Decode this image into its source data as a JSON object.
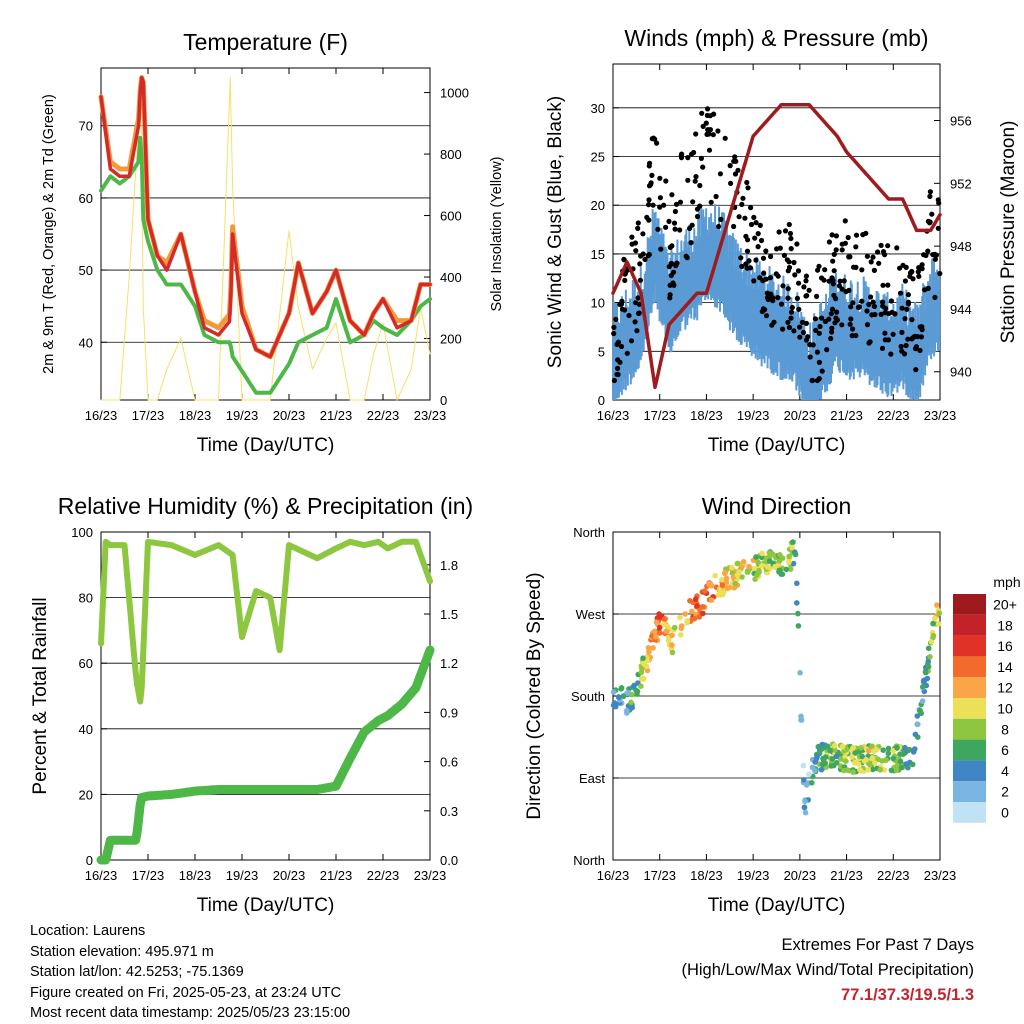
{
  "x_ticks": [
    "16/23",
    "17/23",
    "18/23",
    "19/23",
    "20/23",
    "21/23",
    "22/23",
    "23/23"
  ],
  "time_label": "Time (Day/UTC)",
  "panels": {
    "temperature": {
      "title": "Temperature (F)",
      "ylabel_left": "2m & 9m T (Red, Orange) & 2m Td (Green)",
      "ylabel_right": "Solar Insolation (Yellow)",
      "left_ticks": [
        "40",
        "50",
        "60",
        "70"
      ],
      "right_ticks": [
        "0",
        "200",
        "400",
        "600",
        "800",
        "1000"
      ]
    },
    "winds": {
      "title": "Winds (mph) & Pressure (mb)",
      "ylabel_left": "Sonic Wind & Gust (Blue, Black)",
      "ylabel_right": "Station Pressure (Maroon)",
      "left_ticks": [
        "0",
        "5",
        "10",
        "15",
        "20",
        "25",
        "30"
      ],
      "right_ticks": [
        "940",
        "944",
        "948",
        "952",
        "956"
      ]
    },
    "humidity": {
      "title": "Relative Humidity (%) & Precipitation (in)",
      "ylabel_left": "Percent & Total Rainfall",
      "left_ticks": [
        "0",
        "20",
        "40",
        "60",
        "80",
        "100"
      ],
      "right_ticks": [
        "0.0",
        "0.3",
        "0.6",
        "0.9",
        "1.2",
        "1.5",
        "1.8"
      ]
    },
    "direction": {
      "title": "Wind Direction",
      "ylabel_left": "Direction (Colored By Speed)",
      "left_ticks": [
        "North",
        "East",
        "South",
        "West",
        "North"
      ],
      "colorbar_title": "mph",
      "colorbar_labels": [
        "20+",
        "18",
        "16",
        "14",
        "12",
        "10",
        "8",
        "6",
        "4",
        "2",
        "0"
      ],
      "colorbar_colors": [
        "#9e1a1d",
        "#c42229",
        "#e03226",
        "#f26b2b",
        "#f9a548",
        "#ebe057",
        "#8fc63f",
        "#3fa660",
        "#4186c4",
        "#7ab4e2",
        "#bfe3f5"
      ]
    }
  },
  "info": {
    "location": "Location: Laurens",
    "elevation": "Station elevation: 495.971 m",
    "latlon": "Station lat/lon: 42.5253; -75.1369",
    "created": "Figure created on Fri, 2025-05-23, at 23:24 UTC",
    "timestamp": "Most recent data timestamp: 2025/05/23 23:15:00"
  },
  "extremes": {
    "title": "Extremes For Past 7 Days",
    "subtitle": "(High/Low/Max Wind/Total Precipitation)",
    "values": "77.1/37.3/19.5/1.3"
  },
  "colors": {
    "temp_2m": "#d42a2a",
    "temp_9m": "#f29a3a",
    "dewpoint": "#4db848",
    "insolation": "#f7df6a",
    "wind": "#5b9bd5",
    "gust": "#000000",
    "pressure": "#9e1b1f",
    "rh": "#8dc63f",
    "precip": "#4db848"
  },
  "chart_data": [
    {
      "type": "line",
      "title": "Temperature (F)",
      "xlabel": "Time (Day/UTC)",
      "ylabel": "2m & 9m T (Red, Orange) & 2m Td (Green)",
      "ylabel_right": "Solar Insolation (Yellow)",
      "x": [
        16,
        16.2,
        16.4,
        16.6,
        16.8,
        16.85,
        16.9,
        17.0,
        17.2,
        17.4,
        17.7,
        18.0,
        18.2,
        18.5,
        18.75,
        18.8,
        19.0,
        19.3,
        19.6,
        20.0,
        20.2,
        20.5,
        20.8,
        21.0,
        21.3,
        21.6,
        21.8,
        22.0,
        22.3,
        22.6,
        22.8,
        23.0
      ],
      "xlim": [
        16,
        23
      ],
      "ylim": [
        32,
        78
      ],
      "ylim_right": [
        0,
        1000
      ],
      "series": [
        {
          "name": "2m T",
          "axis": "left",
          "values": [
            74,
            64,
            63,
            63,
            70,
            77,
            76,
            57,
            52,
            50,
            55,
            47,
            42,
            41,
            43,
            55,
            44,
            39,
            38,
            44,
            51,
            44,
            47,
            50,
            43,
            41,
            44,
            46,
            42,
            43,
            48,
            48
          ]
        },
        {
          "name": "9m T",
          "axis": "left",
          "values": [
            74,
            65,
            64,
            64,
            71,
            77,
            76,
            57,
            52,
            51,
            55,
            47,
            43,
            42,
            44,
            56,
            45,
            39,
            38,
            44,
            51,
            44,
            47,
            50,
            43,
            41,
            44,
            46,
            43,
            43,
            48,
            48
          ]
        },
        {
          "name": "2m Td",
          "axis": "left",
          "values": [
            61,
            63,
            62,
            63,
            65,
            70,
            57,
            54,
            50,
            48,
            48,
            45,
            41,
            40,
            40,
            38,
            36,
            33,
            33,
            37,
            40,
            41,
            42,
            46,
            40,
            41,
            43,
            42,
            41,
            43,
            45,
            46
          ]
        },
        {
          "name": "Solar Insolation",
          "axis": "right",
          "values": [
            0,
            0,
            0,
            400,
            900,
            950,
            300,
            0,
            0,
            100,
            200,
            0,
            0,
            0,
            1050,
            700,
            0,
            0,
            0,
            550,
            300,
            100,
            200,
            250,
            0,
            0,
            150,
            250,
            0,
            100,
            300,
            150
          ]
        }
      ]
    },
    {
      "type": "line",
      "title": "Winds (mph) & Pressure (mb)",
      "xlabel": "Time (Day/UTC)",
      "ylabel": "Sonic Wind & Gust (Blue, Black)",
      "ylabel_right": "Station Pressure (Maroon)",
      "x": [
        16,
        16.3,
        16.6,
        16.9,
        17.2,
        17.5,
        17.8,
        18.0,
        18.3,
        18.6,
        19.0,
        19.3,
        19.6,
        19.9,
        20.2,
        20.5,
        20.8,
        21.0,
        21.3,
        21.6,
        21.9,
        22.2,
        22.5,
        22.8,
        23.0
      ],
      "xlim": [
        16,
        23
      ],
      "ylim": [
        0,
        35
      ],
      "ylim_right": [
        938,
        959
      ],
      "series": [
        {
          "name": "Sonic Wind",
          "axis": "left",
          "values": [
            4,
            6,
            8,
            15,
            9,
            12,
            13,
            15,
            14,
            11,
            9,
            8,
            7,
            6,
            2,
            5,
            8,
            7,
            7,
            6,
            5,
            6,
            4,
            9,
            10
          ]
        },
        {
          "name": "Gust",
          "axis": "left",
          "values": [
            7,
            10,
            14,
            25,
            16,
            20,
            22,
            25,
            23,
            20,
            16,
            14,
            13,
            12,
            6,
            9,
            14,
            13,
            12,
            11,
            10,
            11,
            8,
            16,
            17
          ]
        },
        {
          "name": "Station Pressure",
          "axis": "right",
          "values": [
            945,
            947,
            945,
            939,
            943,
            944,
            945,
            945,
            948,
            951,
            955,
            956,
            957,
            957,
            957,
            956,
            955,
            954,
            953,
            952,
            951,
            951,
            949,
            949,
            950
          ]
        }
      ]
    },
    {
      "type": "line",
      "title": "Relative Humidity (%) & Precipitation (in)",
      "xlabel": "Time (Day/UTC)",
      "ylabel": "Percent & Total Rainfall",
      "x": [
        16,
        16.1,
        16.2,
        16.5,
        16.75,
        16.85,
        17.0,
        17.5,
        18.0,
        18.5,
        18.8,
        19.0,
        19.3,
        19.6,
        19.8,
        20.0,
        20.3,
        20.6,
        21.0,
        21.3,
        21.6,
        21.9,
        22.1,
        22.4,
        22.7,
        23.0
      ],
      "xlim": [
        16,
        23
      ],
      "ylim": [
        0,
        100
      ],
      "ylim_right": [
        0,
        2.0
      ],
      "series": [
        {
          "name": "Relative Humidity",
          "axis": "left",
          "values": [
            66,
            97,
            96,
            96,
            55,
            47,
            97,
            96,
            93,
            96,
            93,
            68,
            82,
            80,
            64,
            96,
            94,
            92,
            95,
            97,
            96,
            97,
            95,
            97,
            97,
            85
          ]
        },
        {
          "name": "Total Precipitation",
          "axis": "right",
          "values": [
            0,
            0,
            0.12,
            0.12,
            0.12,
            0.38,
            0.39,
            0.4,
            0.42,
            0.43,
            0.43,
            0.43,
            0.43,
            0.43,
            0.43,
            0.43,
            0.43,
            0.43,
            0.45,
            0.62,
            0.78,
            0.85,
            0.88,
            0.95,
            1.05,
            1.28
          ]
        }
      ]
    },
    {
      "type": "scatter",
      "title": "Wind Direction",
      "xlabel": "Time (Day/UTC)",
      "ylabel": "Direction (Colored By Speed)",
      "yticks": [
        "North",
        "East",
        "South",
        "West",
        "North"
      ],
      "ylim": [
        0,
        360
      ],
      "xlim": [
        16,
        23
      ],
      "x": [
        16.1,
        16.3,
        16.5,
        16.8,
        17.0,
        17.3,
        17.6,
        17.9,
        18.2,
        18.5,
        18.8,
        19.1,
        19.4,
        19.7,
        19.9,
        20.1,
        20.3,
        20.6,
        20.9,
        21.2,
        21.5,
        21.8,
        22.1,
        22.4,
        22.7,
        22.9
      ],
      "direction_deg": [
        180,
        170,
        190,
        230,
        260,
        240,
        270,
        280,
        300,
        310,
        315,
        320,
        330,
        325,
        340,
        60,
        110,
        115,
        112,
        110,
        112,
        110,
        112,
        112,
        200,
        270
      ],
      "speed_mph": [
        4,
        4,
        6,
        12,
        14,
        10,
        12,
        14,
        13,
        10,
        10,
        9,
        8,
        8,
        6,
        2,
        4,
        7,
        7,
        8,
        9,
        8,
        7,
        6,
        4,
        10
      ]
    }
  ]
}
